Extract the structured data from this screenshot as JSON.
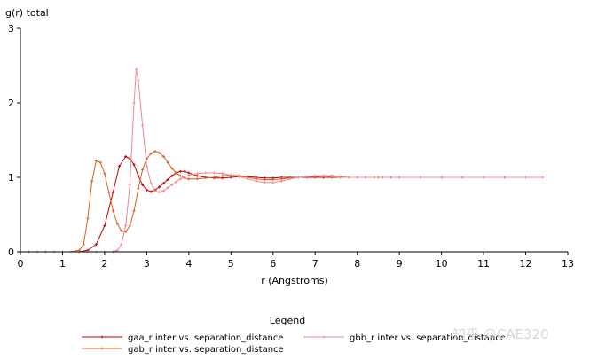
{
  "chart_data": {
    "type": "line",
    "ylabel": "g(r) total",
    "xlabel": "r (Angstroms)",
    "xlim": [
      0,
      13
    ],
    "ylim": [
      0,
      3
    ],
    "xticks": [
      0,
      1,
      2,
      3,
      4,
      5,
      6,
      7,
      8,
      9,
      10,
      11,
      12,
      13
    ],
    "yticks": [
      0,
      1,
      2,
      3
    ],
    "grid": false,
    "legend": {
      "title": "Legend",
      "placement": "bottom"
    },
    "series": [
      {
        "name": "gaa_r inter vs. separation_distance",
        "color": "#c00000",
        "x": [
          0,
          0.2,
          0.4,
          0.6,
          0.8,
          1.0,
          1.2,
          1.4,
          1.6,
          1.8,
          2.0,
          2.2,
          2.35,
          2.5,
          2.6,
          2.7,
          2.8,
          2.9,
          3.0,
          3.1,
          3.2,
          3.3,
          3.4,
          3.5,
          3.6,
          3.7,
          3.8,
          3.9,
          4.0,
          4.2,
          4.4,
          4.6,
          4.8,
          5.0,
          5.2,
          5.4,
          5.6,
          5.8,
          6.0,
          6.2,
          6.4,
          6.6,
          6.8,
          7.0,
          7.2,
          7.4,
          7.6,
          7.8,
          8.0,
          8.2,
          8.4,
          8.6,
          8.8,
          9.0,
          9.5,
          10.0,
          10.5,
          11.0,
          11.5,
          12.0,
          12.4
        ],
        "y": [
          0,
          0,
          0,
          0,
          0,
          0,
          0,
          0,
          0.02,
          0.1,
          0.35,
          0.8,
          1.15,
          1.28,
          1.25,
          1.17,
          1.02,
          0.9,
          0.83,
          0.81,
          0.83,
          0.87,
          0.92,
          0.97,
          1.02,
          1.06,
          1.08,
          1.08,
          1.06,
          1.02,
          1.0,
          0.99,
          0.99,
          1.0,
          1.01,
          1.01,
          1.0,
          0.99,
          0.99,
          1.0,
          1.0,
          1.0,
          1.0,
          1.0,
          1.0,
          1.0,
          1.0,
          1.0,
          1.0,
          1.0,
          1.0,
          1.0,
          1.0,
          1.0,
          1.0,
          1.0,
          1.0,
          1.0,
          1.0,
          1.0,
          1.0
        ]
      },
      {
        "name": "gab_r inter vs. separation_distance",
        "color": "#d86020",
        "x": [
          0,
          0.2,
          0.4,
          0.6,
          0.8,
          1.0,
          1.2,
          1.4,
          1.5,
          1.6,
          1.7,
          1.8,
          1.9,
          2.0,
          2.1,
          2.2,
          2.3,
          2.4,
          2.5,
          2.6,
          2.7,
          2.8,
          2.9,
          3.0,
          3.1,
          3.2,
          3.3,
          3.4,
          3.5,
          3.6,
          3.7,
          3.8,
          3.9,
          4.0,
          4.2,
          4.4,
          4.6,
          4.8,
          5.0,
          5.2,
          5.4,
          5.6,
          5.8,
          6.0,
          6.2,
          6.4,
          6.6,
          6.8,
          7.0,
          7.2,
          7.4,
          7.6,
          7.8,
          8.0,
          8.5,
          9.0,
          9.5,
          10.0,
          10.5,
          11.0,
          11.5,
          12.0,
          12.4
        ],
        "y": [
          0,
          0,
          0,
          0,
          0,
          0,
          0,
          0.02,
          0.1,
          0.45,
          0.95,
          1.22,
          1.2,
          1.05,
          0.8,
          0.55,
          0.38,
          0.28,
          0.27,
          0.35,
          0.55,
          0.85,
          1.1,
          1.25,
          1.32,
          1.35,
          1.33,
          1.28,
          1.2,
          1.12,
          1.06,
          1.02,
          0.99,
          0.98,
          0.98,
          0.99,
          1.0,
          1.02,
          1.03,
          1.02,
          1.0,
          0.98,
          0.97,
          0.97,
          0.98,
          0.99,
          1.0,
          1.01,
          1.01,
          1.02,
          1.02,
          1.01,
          1.0,
          1.0,
          1.0,
          1.0,
          1.0,
          1.0,
          1.0,
          1.0,
          1.0,
          1.0,
          1.0
        ]
      },
      {
        "name": "gbb_r inter vs. separation_distance",
        "color": "#f08898",
        "x": [
          0,
          0.2,
          0.4,
          0.6,
          0.8,
          1.0,
          1.2,
          1.4,
          1.6,
          1.8,
          2.0,
          2.2,
          2.3,
          2.4,
          2.5,
          2.6,
          2.7,
          2.75,
          2.8,
          2.9,
          3.0,
          3.1,
          3.2,
          3.3,
          3.4,
          3.5,
          3.6,
          3.7,
          3.8,
          3.9,
          4.0,
          4.2,
          4.4,
          4.6,
          4.8,
          5.0,
          5.2,
          5.4,
          5.6,
          5.8,
          6.0,
          6.2,
          6.4,
          6.6,
          6.8,
          7.0,
          7.2,
          7.4,
          7.6,
          7.8,
          8.0,
          8.2,
          8.4,
          8.6,
          8.8,
          9.0,
          9.5,
          10.0,
          10.5,
          11.0,
          11.5,
          12.0,
          12.4
        ],
        "y": [
          0,
          0,
          0,
          0,
          0,
          0,
          0,
          0,
          0,
          0,
          0,
          0,
          0.02,
          0.1,
          0.35,
          0.9,
          2.0,
          2.45,
          2.3,
          1.7,
          1.15,
          0.92,
          0.82,
          0.8,
          0.82,
          0.86,
          0.9,
          0.94,
          0.98,
          1.01,
          1.03,
          1.05,
          1.06,
          1.06,
          1.05,
          1.03,
          1.01,
          0.98,
          0.95,
          0.93,
          0.93,
          0.95,
          0.98,
          1.0,
          1.01,
          1.02,
          1.02,
          1.01,
          1.0,
          1.0,
          1.0,
          1.0,
          1.0,
          1.0,
          1.0,
          1.0,
          1.0,
          1.0,
          1.0,
          1.0,
          1.0,
          1.0,
          1.0
        ]
      }
    ]
  },
  "watermark": "知乎 @CAE320"
}
